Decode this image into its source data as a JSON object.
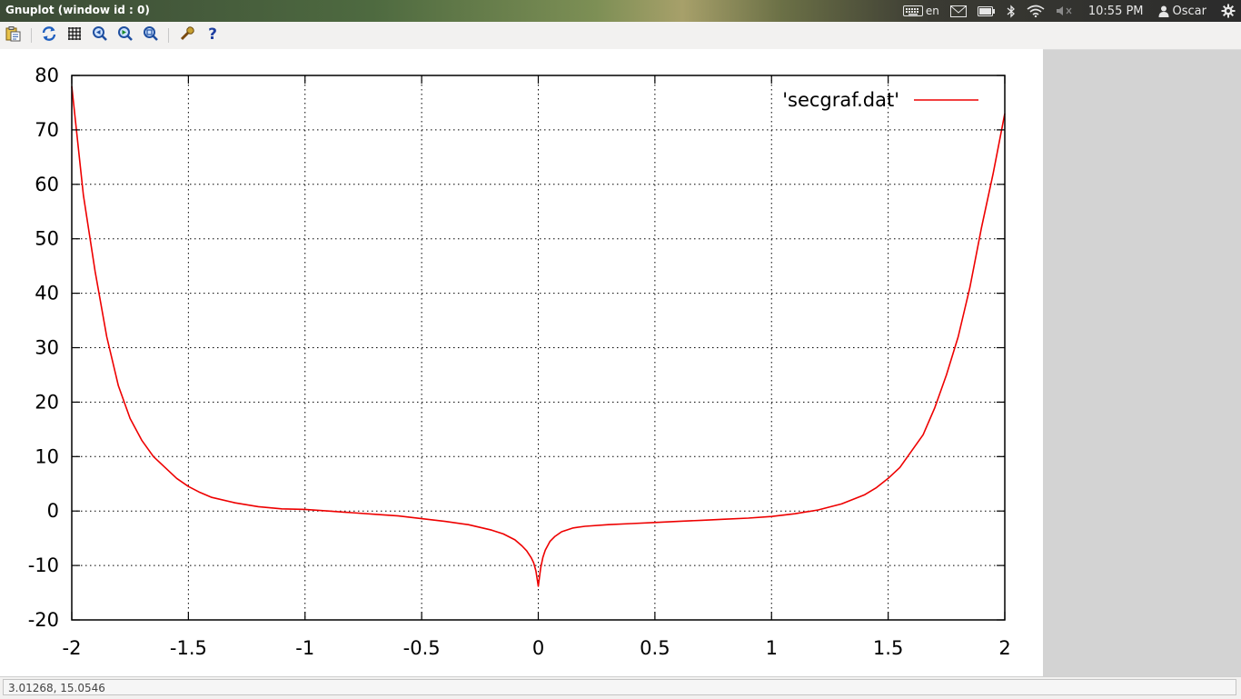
{
  "window": {
    "title": "Gnuplot (window id : 0)"
  },
  "panel": {
    "keyboard_layout": "en",
    "clock": "10:55 PM",
    "user": "Oscar",
    "icons": [
      "keyboard-icon",
      "mail-icon",
      "battery-icon",
      "bluetooth-icon",
      "wifi-icon",
      "volume-muted-icon",
      "user-icon",
      "gear-icon"
    ]
  },
  "toolbar": {
    "icons": [
      "copy-to-clipboard-icon",
      "replot-icon",
      "grid-icon",
      "zoom-previous-icon",
      "zoom-next-icon",
      "zoom-autoscale-icon",
      "config-icon",
      "help-icon"
    ]
  },
  "status": {
    "coordinates": "3.01268,  15.0546"
  },
  "colors": {
    "series": "#ee0000",
    "axis": "#000000",
    "grid": "#000000"
  },
  "chart_data": {
    "type": "line",
    "title": "",
    "xlabel": "",
    "ylabel": "",
    "xlim": [
      -2,
      2
    ],
    "ylim": [
      -20,
      80
    ],
    "grid": true,
    "legend": "top-right",
    "x_ticks": [
      "-2",
      "-1.5",
      "-1",
      "-0.5",
      "0",
      "0.5",
      "1",
      "1.5",
      "2"
    ],
    "y_ticks": [
      "-20",
      "-10",
      "0",
      "10",
      "20",
      "30",
      "40",
      "50",
      "60",
      "70",
      "80"
    ],
    "series": [
      {
        "name": "'secgraf.dat'",
        "color": "#ee0000",
        "x": [
          -2.0,
          -1.95,
          -1.9,
          -1.85,
          -1.8,
          -1.75,
          -1.7,
          -1.65,
          -1.6,
          -1.55,
          -1.5,
          -1.45,
          -1.4,
          -1.3,
          -1.2,
          -1.1,
          -1.0,
          -0.9,
          -0.8,
          -0.7,
          -0.6,
          -0.5,
          -0.4,
          -0.3,
          -0.2,
          -0.15,
          -0.1,
          -0.07,
          -0.05,
          -0.03,
          -0.02,
          -0.01,
          0.0,
          0.01,
          0.02,
          0.03,
          0.05,
          0.07,
          0.1,
          0.15,
          0.2,
          0.3,
          0.4,
          0.5,
          0.6,
          0.7,
          0.8,
          0.9,
          1.0,
          1.1,
          1.2,
          1.3,
          1.4,
          1.45,
          1.5,
          1.55,
          1.6,
          1.65,
          1.7,
          1.75,
          1.8,
          1.85,
          1.9,
          1.95,
          2.0
        ],
        "y": [
          78,
          58,
          44,
          32,
          23,
          17,
          13,
          10,
          8,
          6,
          4.5,
          3.4,
          2.5,
          1.5,
          0.8,
          0.4,
          0.3,
          0.0,
          -0.3,
          -0.6,
          -0.9,
          -1.4,
          -1.9,
          -2.5,
          -3.5,
          -4.2,
          -5.3,
          -6.4,
          -7.3,
          -8.6,
          -9.5,
          -11,
          -13.8,
          -10.5,
          -8.5,
          -7.2,
          -5.6,
          -4.7,
          -3.8,
          -3.1,
          -2.8,
          -2.5,
          -2.3,
          -2.1,
          -1.9,
          -1.7,
          -1.5,
          -1.3,
          -1.0,
          -0.5,
          0.2,
          1.3,
          3,
          4.3,
          6,
          8,
          11,
          14,
          19,
          25,
          32,
          41,
          52,
          62,
          73
        ]
      }
    ]
  }
}
